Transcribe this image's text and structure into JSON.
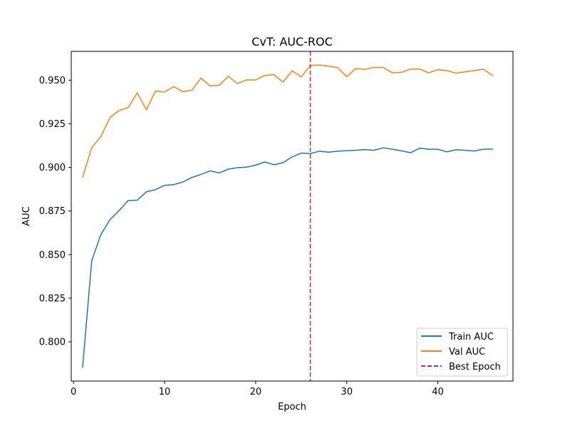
{
  "chart_data": {
    "type": "line",
    "title": "CvT: AUC-ROC",
    "xlabel": "Epoch",
    "ylabel": "AUC",
    "xlim": [
      -0.25,
      48.25
    ],
    "ylim": [
      0.7775,
      0.9665
    ],
    "xticks": [
      0,
      10,
      20,
      30,
      40
    ],
    "xtick_labels": [
      "0",
      "10",
      "20",
      "30",
      "40"
    ],
    "yticks": [
      0.8,
      0.825,
      0.85,
      0.875,
      0.9,
      0.925,
      0.95
    ],
    "ytick_labels": [
      "0.800",
      "0.825",
      "0.850",
      "0.875",
      "0.900",
      "0.925",
      "0.950"
    ],
    "grid": false,
    "legend_position": "lower-right",
    "x": [
      1,
      2,
      3,
      4,
      5,
      6,
      7,
      8,
      9,
      10,
      11,
      12,
      13,
      14,
      15,
      16,
      17,
      18,
      19,
      20,
      21,
      22,
      23,
      24,
      25,
      26,
      27,
      28,
      29,
      30,
      31,
      32,
      33,
      34,
      35,
      36,
      37,
      38,
      39,
      40,
      41,
      42,
      43,
      44,
      45,
      46
    ],
    "series": [
      {
        "name": "Train AUC",
        "color": "#1f77b4",
        "values": [
          0.7855,
          0.8465,
          0.8615,
          0.87,
          0.8752,
          0.881,
          0.8812,
          0.886,
          0.8872,
          0.8897,
          0.8901,
          0.8916,
          0.8942,
          0.896,
          0.898,
          0.8968,
          0.899,
          0.8998,
          0.9001,
          0.9013,
          0.9031,
          0.9015,
          0.9027,
          0.906,
          0.9082,
          0.9079,
          0.9093,
          0.9087,
          0.9093,
          0.9096,
          0.9098,
          0.9102,
          0.9098,
          0.9112,
          0.9104,
          0.9095,
          0.9084,
          0.911,
          0.9104,
          0.9104,
          0.9089,
          0.9101,
          0.9098,
          0.9094,
          0.9104,
          0.9105
        ]
      },
      {
        "name": "Val AUC",
        "color": "#ff7f0e",
        "values": [
          0.8945,
          0.9113,
          0.9177,
          0.9285,
          0.9326,
          0.9343,
          0.9427,
          0.933,
          0.9438,
          0.9432,
          0.9463,
          0.9434,
          0.9442,
          0.9512,
          0.9467,
          0.9471,
          0.9522,
          0.948,
          0.9502,
          0.9501,
          0.9527,
          0.9532,
          0.9489,
          0.9553,
          0.9519,
          0.9584,
          0.9587,
          0.958,
          0.9572,
          0.952,
          0.9567,
          0.9562,
          0.9573,
          0.9573,
          0.9542,
          0.9545,
          0.9563,
          0.9564,
          0.9542,
          0.956,
          0.9555,
          0.954,
          0.9548,
          0.9555,
          0.9563,
          0.9526
        ]
      }
    ],
    "vlines": [
      {
        "name": "Best Epoch",
        "x": 26,
        "color": "#d62728",
        "style": "dashed"
      }
    ]
  }
}
